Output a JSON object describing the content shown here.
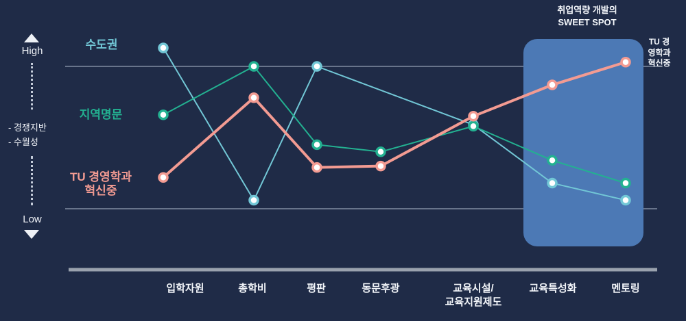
{
  "colors": {
    "background": "#1f2b47",
    "gridline": "#93a0b4",
    "axis": "#9aa2ae",
    "highlight_box": "#4c79b5",
    "marker_fill": "#ffffff",
    "text": "#f2f5f9"
  },
  "chart_data": {
    "type": "line",
    "categories": [
      "입학자원",
      "총학비",
      "평판",
      "동문후광",
      "교육시설/\n교육지원제도",
      "교육특성화",
      "멘토링"
    ],
    "y_axis": {
      "high": "High",
      "low": "Low",
      "label": "- 경쟁지반\n- 수월성"
    },
    "gridlines_at": [
      0,
      10
    ],
    "ylim": [
      0,
      11.5
    ],
    "legend_position": "left-inline",
    "series": [
      {
        "name": "수도권",
        "color": "#72c7d6",
        "line_width": 2,
        "values": [
          11.3,
          0.6,
          10,
          null,
          5.9,
          1.8,
          0.6
        ]
      },
      {
        "name": "지역명문",
        "color": "#23b191",
        "line_width": 2,
        "values": [
          6.6,
          10,
          4.5,
          4.0,
          5.8,
          3.4,
          1.8
        ]
      },
      {
        "name": "TU 경영학과\n혁신중",
        "color": "#f39b92",
        "line_width": 4,
        "values": [
          2.2,
          7.8,
          2.9,
          3.0,
          6.5,
          8.7,
          10.3
        ]
      }
    ],
    "highlight": {
      "label": "취업역량 개발의\nSWEET SPOT",
      "covers": [
        "교육특성화",
        "멘토링"
      ]
    },
    "annotation": {
      "text": "TU 경영학과\n혁신중"
    }
  }
}
